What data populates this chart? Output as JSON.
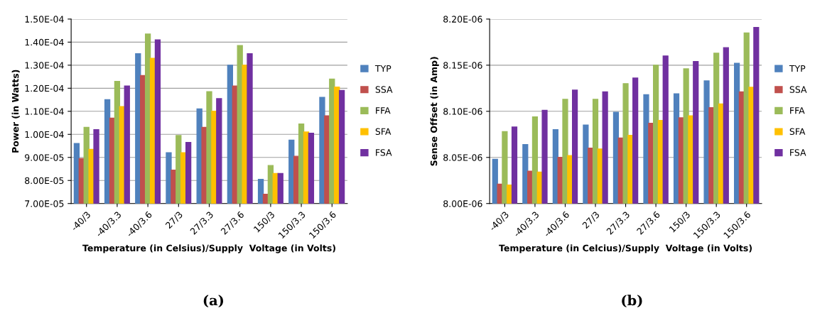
{
  "chart_data": [
    {
      "type": "bar",
      "xlabel": "Temperature (in Celsius)/Supply  Voltage (in Volts)",
      "ylabel": "Power (in Watts)",
      "annotations": [
        "(a)"
      ],
      "categories": [
        "-40/3",
        "-40/3.3",
        "-40/3.6",
        "27/3",
        "27/3.3",
        "27/3.6",
        "150/3",
        "150/3.3",
        "150/3.6"
      ],
      "series": [
        {
          "name": "TYP",
          "color": "#4f81bd",
          "values": [
            9.6e-05,
            0.000115,
            0.000135,
            9.2e-05,
            0.000111,
            0.00013,
            8.05e-05,
            9.75e-05,
            0.000116
          ]
        },
        {
          "name": "SSA",
          "color": "#c0504d",
          "values": [
            8.95e-05,
            0.000107,
            0.0001255,
            8.45e-05,
            0.000103,
            0.000121,
            7.4e-05,
            9.05e-05,
            0.000108
          ]
        },
        {
          "name": "FFA",
          "color": "#9bbb59",
          "values": [
            0.000103,
            0.000123,
            0.0001435,
            9.95e-05,
            0.0001185,
            0.0001385,
            8.65e-05,
            0.0001045,
            0.000124
          ]
        },
        {
          "name": "SFA",
          "color": "#ffc000",
          "values": [
            9.35e-05,
            0.000112,
            0.000133,
            9.2e-05,
            0.00011,
            0.00013,
            8.3e-05,
            0.000101,
            0.0001205
          ]
        },
        {
          "name": "FSA",
          "color": "#7030a0",
          "values": [
            0.000102,
            0.000121,
            0.000141,
            9.65e-05,
            0.0001155,
            0.000135,
            8.3e-05,
            0.0001005,
            0.000119
          ]
        }
      ],
      "ylim": [
        7e-05,
        0.00015
      ],
      "yticks": [
        {
          "value": 7e-05,
          "label": "7.00E-05"
        },
        {
          "value": 8e-05,
          "label": "8.00E-05"
        },
        {
          "value": 9e-05,
          "label": "9.00E-05"
        },
        {
          "value": 0.0001,
          "label": "1.00E-04"
        },
        {
          "value": 0.00011,
          "label": "1.10E-04"
        },
        {
          "value": 0.00012,
          "label": "1.20E-04"
        },
        {
          "value": 0.00013,
          "label": "1.30E-04"
        },
        {
          "value": 0.00014,
          "label": "1.40E-04"
        },
        {
          "value": 0.00015,
          "label": "1.50E-04"
        }
      ],
      "grid": "y",
      "legend": "right"
    },
    {
      "type": "bar",
      "xlabel": "Temperature (in Celcius)/Supply  Voltage (in Volts)",
      "ylabel": "Sense Offset (in Amp)",
      "annotations": [
        "(b)"
      ],
      "categories": [
        "-40/3",
        "-40/3.3",
        "-40/3.6",
        "27/3",
        "27/3.3",
        "27/3.6",
        "150/3",
        "150/3.3",
        "150/3.6"
      ],
      "series": [
        {
          "name": "TYP",
          "color": "#4f81bd",
          "values": [
            8.048e-06,
            8.064e-06,
            8.08e-06,
            8.085e-06,
            8.099e-06,
            8.118e-06,
            8.119e-06,
            8.133e-06,
            8.152e-06
          ]
        },
        {
          "name": "SSA",
          "color": "#c0504d",
          "values": [
            8.021e-06,
            8.035e-06,
            8.05e-06,
            8.06e-06,
            8.071e-06,
            8.087e-06,
            8.093e-06,
            8.104e-06,
            8.121e-06
          ]
        },
        {
          "name": "FFA",
          "color": "#9bbb59",
          "values": [
            8.078e-06,
            8.094e-06,
            8.113e-06,
            8.113e-06,
            8.13e-06,
            8.15e-06,
            8.146e-06,
            8.163e-06,
            8.185e-06
          ]
        },
        {
          "name": "SFA",
          "color": "#ffc000",
          "values": [
            8.02e-06,
            8.034e-06,
            8.052e-06,
            8.059e-06,
            8.074e-06,
            8.09e-06,
            8.095e-06,
            8.108e-06,
            8.126e-06
          ]
        },
        {
          "name": "FSA",
          "color": "#7030a0",
          "values": [
            8.083e-06,
            8.101e-06,
            8.123e-06,
            8.121e-06,
            8.136e-06,
            8.16e-06,
            8.154e-06,
            8.169e-06,
            8.191e-06
          ]
        }
      ],
      "ylim": [
        8e-06,
        8.2e-06
      ],
      "yticks": [
        {
          "value": 8e-06,
          "label": "8.00E-06"
        },
        {
          "value": 8.05e-06,
          "label": "8.05E-06"
        },
        {
          "value": 8.1e-06,
          "label": "8.10E-06"
        },
        {
          "value": 8.15e-06,
          "label": "8.15E-06"
        },
        {
          "value": 8.2e-06,
          "label": "8.20E-06"
        }
      ],
      "grid": "y",
      "legend": "right"
    }
  ]
}
